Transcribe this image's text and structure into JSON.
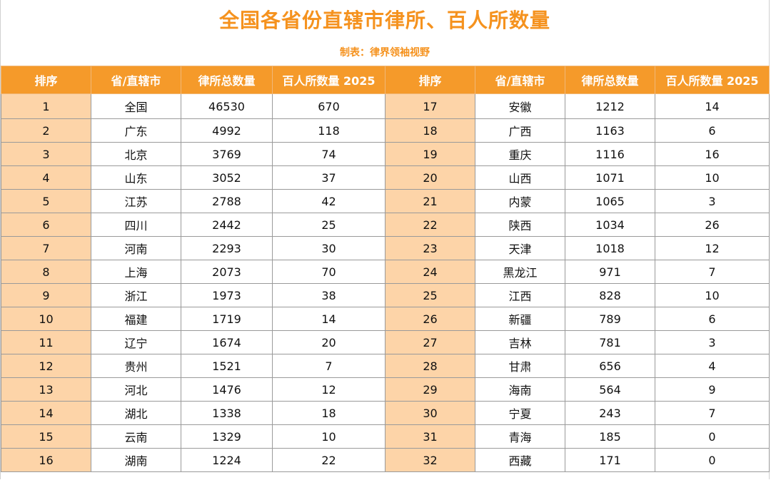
{
  "title": "全国各省份直辖市律所、百人所数量",
  "subtitle": "制表：律界领袖视野",
  "headers": [
    "排序",
    "省/直辖市",
    "律所总数量",
    "百人所数量 2025",
    "排序",
    "省/直辖市",
    "律所总数量",
    "百人所数量 2025"
  ],
  "rows": [
    {
      "left": {
        "rank": "1",
        "name": "全国",
        "firms": "46530",
        "hundred": "670"
      },
      "right": {
        "rank": "17",
        "name": "安徽",
        "firms": "1212",
        "hundred": "14"
      }
    },
    {
      "left": {
        "rank": "2",
        "name": "广东",
        "firms": "4992",
        "hundred": "118"
      },
      "right": {
        "rank": "18",
        "name": "广西",
        "firms": "1163",
        "hundred": "6"
      }
    },
    {
      "left": {
        "rank": "3",
        "name": "北京",
        "firms": "3769",
        "hundred": "74"
      },
      "right": {
        "rank": "19",
        "name": "重庆",
        "firms": "1116",
        "hundred": "16"
      }
    },
    {
      "left": {
        "rank": "4",
        "name": "山东",
        "firms": "3052",
        "hundred": "37"
      },
      "right": {
        "rank": "20",
        "name": "山西",
        "firms": "1071",
        "hundred": "10"
      }
    },
    {
      "left": {
        "rank": "5",
        "name": "江苏",
        "firms": "2788",
        "hundred": "42"
      },
      "right": {
        "rank": "21",
        "name": "内蒙",
        "firms": "1065",
        "hundred": "3"
      }
    },
    {
      "left": {
        "rank": "6",
        "name": "四川",
        "firms": "2442",
        "hundred": "25"
      },
      "right": {
        "rank": "22",
        "name": "陕西",
        "firms": "1034",
        "hundred": "26"
      }
    },
    {
      "left": {
        "rank": "7",
        "name": "河南",
        "firms": "2293",
        "hundred": "30"
      },
      "right": {
        "rank": "23",
        "name": "天津",
        "firms": "1018",
        "hundred": "12"
      }
    },
    {
      "left": {
        "rank": "8",
        "name": "上海",
        "firms": "2073",
        "hundred": "70"
      },
      "right": {
        "rank": "24",
        "name": "黑龙江",
        "firms": "971",
        "hundred": "7"
      }
    },
    {
      "left": {
        "rank": "9",
        "name": "浙江",
        "firms": "1973",
        "hundred": "38"
      },
      "right": {
        "rank": "25",
        "name": "江西",
        "firms": "828",
        "hundred": "10"
      }
    },
    {
      "left": {
        "rank": "10",
        "name": "福建",
        "firms": "1719",
        "hundred": "14"
      },
      "right": {
        "rank": "26",
        "name": "新疆",
        "firms": "789",
        "hundred": "6"
      }
    },
    {
      "left": {
        "rank": "11",
        "name": "辽宁",
        "firms": "1674",
        "hundred": "20"
      },
      "right": {
        "rank": "27",
        "name": "吉林",
        "firms": "781",
        "hundred": "3"
      }
    },
    {
      "left": {
        "rank": "12",
        "name": "贵州",
        "firms": "1521",
        "hundred": "7"
      },
      "right": {
        "rank": "28",
        "name": "甘肃",
        "firms": "656",
        "hundred": "4"
      }
    },
    {
      "left": {
        "rank": "13",
        "name": "河北",
        "firms": "1476",
        "hundred": "12"
      },
      "right": {
        "rank": "29",
        "name": "海南",
        "firms": "564",
        "hundred": "9"
      }
    },
    {
      "left": {
        "rank": "14",
        "name": "湖北",
        "firms": "1338",
        "hundred": "18"
      },
      "right": {
        "rank": "30",
        "name": "宁夏",
        "firms": "243",
        "hundred": "7"
      }
    },
    {
      "left": {
        "rank": "15",
        "name": "云南",
        "firms": "1329",
        "hundred": "10"
      },
      "right": {
        "rank": "31",
        "name": "青海",
        "firms": "185",
        "hundred": "0"
      }
    },
    {
      "left": {
        "rank": "16",
        "name": "湖南",
        "firms": "1224",
        "hundred": "22"
      },
      "right": {
        "rank": "32",
        "name": "西藏",
        "firms": "171",
        "hundred": "0"
      }
    }
  ],
  "colors": {
    "accent": "#f5921e",
    "header_bg": "#f59a2a",
    "rank_cell_bg": "#fdd4a8"
  }
}
